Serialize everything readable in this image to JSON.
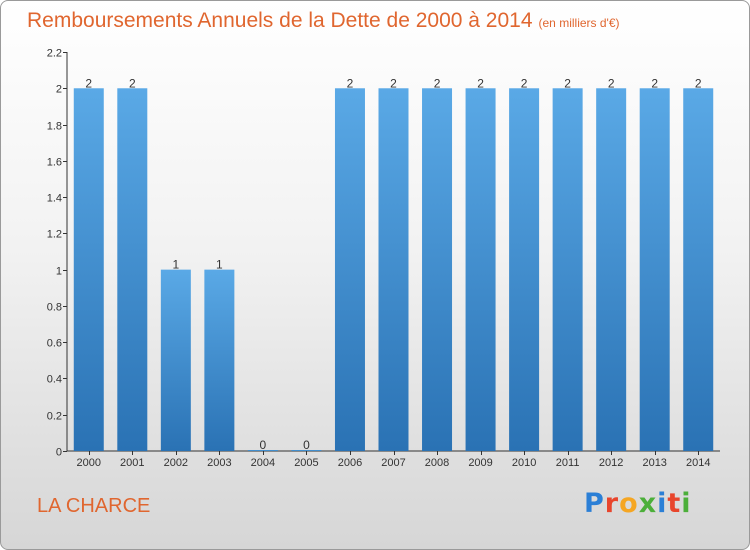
{
  "title": "Remboursements Annuels de la Dette de 2000 à 2014",
  "subtitle": "(en milliers d'€)",
  "commune": "LA CHARCE",
  "logo": {
    "text": "Proxiti",
    "letters": [
      {
        "ch": "P",
        "color": "#2b7fd6"
      },
      {
        "ch": "r",
        "color": "#e8452c"
      },
      {
        "ch": "o",
        "color": "#f5a623"
      },
      {
        "ch": "x",
        "color": "#4caf3a"
      },
      {
        "ch": "i",
        "color": "#2b7fd6"
      },
      {
        "ch": "t",
        "color": "#e8452c"
      },
      {
        "ch": "i",
        "color": "#4caf3a"
      }
    ]
  },
  "colors": {
    "title": "#e0662f",
    "bar_top": "#5aa9e6",
    "bar_bottom": "#2a72b4"
  },
  "chart_data": {
    "type": "bar",
    "title": "Remboursements Annuels de la Dette de 2000 à 2014",
    "ylabel": "",
    "xlabel": "",
    "categories": [
      "2000",
      "2001",
      "2002",
      "2003",
      "2004",
      "2005",
      "2006",
      "2007",
      "2008",
      "2009",
      "2010",
      "2011",
      "2012",
      "2013",
      "2014"
    ],
    "values": [
      2,
      2,
      1,
      1,
      0,
      0,
      2,
      2,
      2,
      2,
      2,
      2,
      2,
      2,
      2
    ],
    "data_labels": [
      "2",
      "2",
      "1",
      "1",
      "0",
      "0",
      "2",
      "2",
      "2",
      "2",
      "2",
      "2",
      "2",
      "2",
      "2"
    ],
    "ylim": [
      0,
      2.2
    ],
    "yticks": [
      0,
      0.2,
      0.4,
      0.6,
      0.8,
      1,
      1.2,
      1.4,
      1.6,
      1.8,
      2,
      2.2
    ],
    "ytick_labels": [
      "0",
      "0.2",
      "0.4",
      "0.6",
      "0.8",
      "1",
      "1.2",
      "1.4",
      "1.6",
      "1.8",
      "2",
      "2.2"
    ],
    "grid": false
  }
}
